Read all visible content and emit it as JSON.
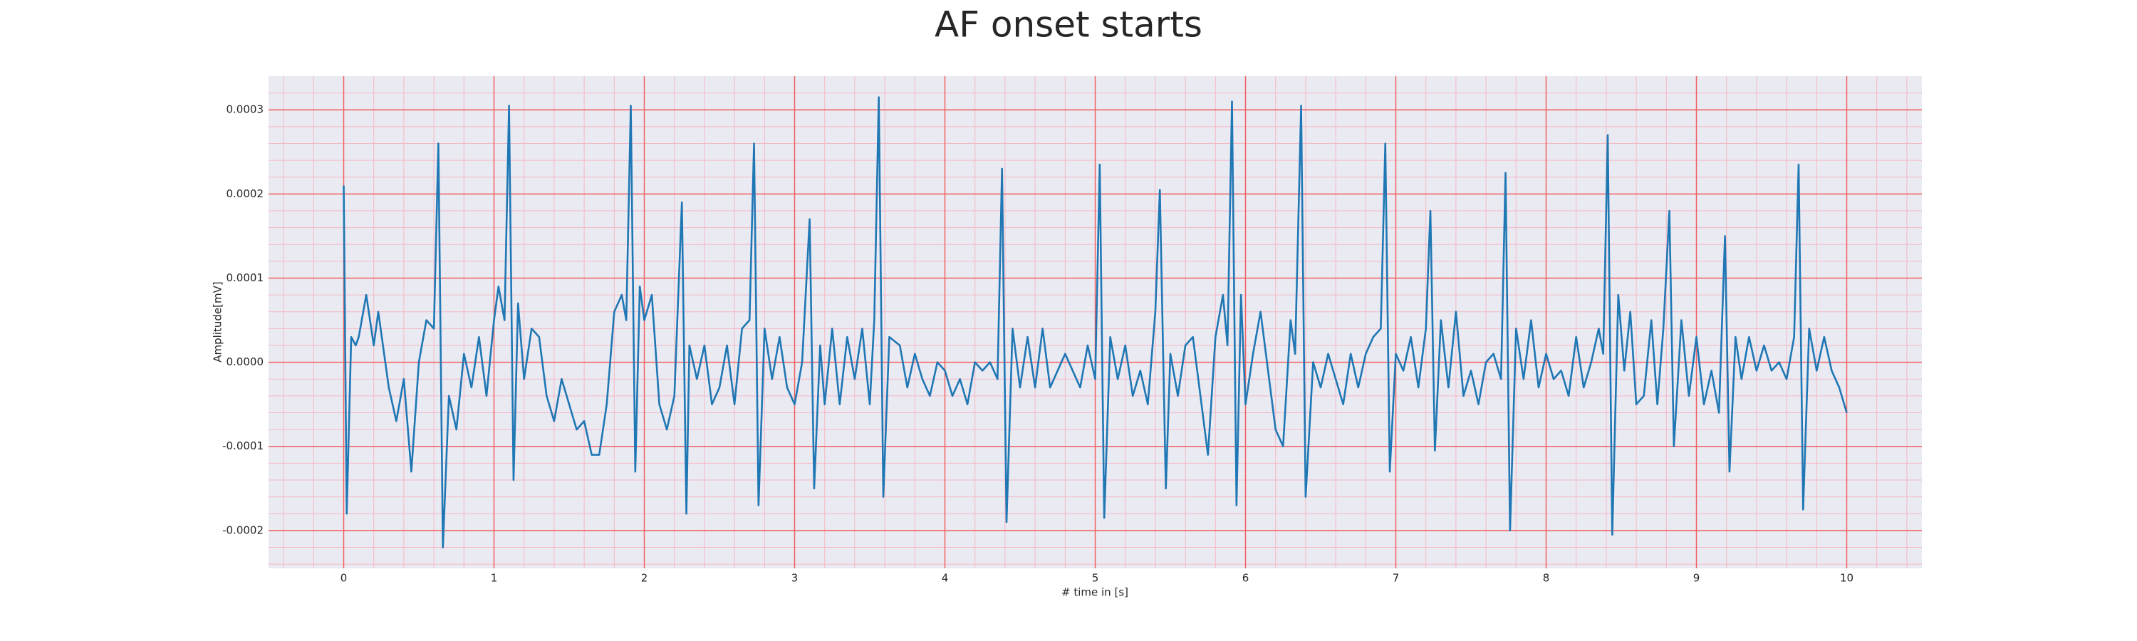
{
  "chart_data": {
    "type": "line",
    "title": "AF onset starts",
    "xlabel": "# time in [s]",
    "ylabel": "Amplitude[mV]",
    "xlim": [
      -0.5,
      10.5
    ],
    "ylim": [
      -0.000245,
      0.00034
    ],
    "xticks": [
      0,
      1,
      2,
      3,
      4,
      5,
      6,
      7,
      8,
      9,
      10
    ],
    "yticks": [
      -0.0002,
      -0.0001,
      {
        "value": 0,
        "label": "0.0000"
      },
      0.0001,
      0.0002,
      0.0003
    ],
    "xminorticks": [
      -0.4,
      -0.2,
      0.2,
      0.4,
      0.6,
      0.8,
      1.2,
      1.4,
      1.6,
      1.8,
      2.2,
      2.4,
      2.6,
      2.8,
      3.2,
      3.4,
      3.6,
      3.8,
      4.2,
      4.4,
      4.6,
      4.8,
      5.2,
      5.4,
      5.6,
      5.8,
      6.2,
      6.4,
      6.6,
      6.8,
      7.2,
      7.4,
      7.6,
      7.8,
      8.2,
      8.4,
      8.6,
      8.8,
      9.2,
      9.4,
      9.6,
      9.8,
      10.2,
      10.4
    ],
    "yminorticks": [
      -0.00024,
      -0.00022,
      -0.00018,
      -0.00016,
      -0.00014,
      -0.00012,
      -8e-05,
      -6e-05,
      -4e-05,
      -2e-05,
      2e-05,
      4e-05,
      6e-05,
      8e-05,
      0.00012,
      0.00014,
      0.00016,
      0.00018,
      0.00022,
      0.00024,
      0.00026,
      0.00028,
      0.00032
    ],
    "grid": true,
    "grid_color": "#f06060",
    "minor_grid_color": "#f5b8c4",
    "background": "#eaeaf2",
    "series": [
      {
        "color": "#1f77b4",
        "x": [
          0,
          0.02,
          0.05,
          0.08,
          0.1,
          0.15,
          0.2,
          0.23,
          0.3,
          0.35,
          0.4,
          0.45,
          0.5,
          0.55,
          0.6,
          0.63,
          0.66,
          0.7,
          0.75,
          0.8,
          0.85,
          0.9,
          0.95,
          1.0,
          1.03,
          1.07,
          1.1,
          1.13,
          1.16,
          1.2,
          1.25,
          1.3,
          1.35,
          1.4,
          1.45,
          1.5,
          1.55,
          1.6,
          1.65,
          1.7,
          1.75,
          1.8,
          1.85,
          1.88,
          1.91,
          1.94,
          1.97,
          2.0,
          2.05,
          2.1,
          2.15,
          2.2,
          2.25,
          2.28,
          2.3,
          2.35,
          2.4,
          2.45,
          2.5,
          2.55,
          2.6,
          2.65,
          2.7,
          2.73,
          2.76,
          2.8,
          2.85,
          2.9,
          2.95,
          3.0,
          3.05,
          3.1,
          3.13,
          3.17,
          3.2,
          3.25,
          3.3,
          3.35,
          3.4,
          3.45,
          3.5,
          3.53,
          3.56,
          3.59,
          3.63,
          3.7,
          3.75,
          3.8,
          3.85,
          3.9,
          3.95,
          4.0,
          4.05,
          4.1,
          4.15,
          4.2,
          4.25,
          4.3,
          4.35,
          4.38,
          4.41,
          4.45,
          4.5,
          4.55,
          4.6,
          4.65,
          4.7,
          4.75,
          4.8,
          4.85,
          4.9,
          4.95,
          5.0,
          5.03,
          5.06,
          5.1,
          5.15,
          5.2,
          5.25,
          5.3,
          5.35,
          5.4,
          5.43,
          5.47,
          5.5,
          5.55,
          5.6,
          5.65,
          5.7,
          5.75,
          5.8,
          5.85,
          5.88,
          5.91,
          5.94,
          5.97,
          6.0,
          6.05,
          6.1,
          6.15,
          6.2,
          6.25,
          6.3,
          6.33,
          6.37,
          6.4,
          6.45,
          6.5,
          6.55,
          6.6,
          6.65,
          6.7,
          6.75,
          6.8,
          6.85,
          6.9,
          6.93,
          6.96,
          7.0,
          7.05,
          7.1,
          7.15,
          7.2,
          7.23,
          7.26,
          7.3,
          7.35,
          7.4,
          7.45,
          7.5,
          7.55,
          7.6,
          7.65,
          7.7,
          7.73,
          7.76,
          7.8,
          7.85,
          7.9,
          7.95,
          8.0,
          8.05,
          8.1,
          8.15,
          8.2,
          8.25,
          8.3,
          8.35,
          8.38,
          8.41,
          8.44,
          8.48,
          8.52,
          8.56,
          8.6,
          8.65,
          8.7,
          8.74,
          8.78,
          8.82,
          8.85,
          8.9,
          8.95,
          9.0,
          9.05,
          9.1,
          9.15,
          9.19,
          9.22,
          9.26,
          9.3,
          9.35,
          9.4,
          9.45,
          9.5,
          9.55,
          9.6,
          9.65,
          9.68,
          9.71,
          9.75,
          9.8,
          9.85,
          9.9,
          9.95,
          10.0
        ],
        "values": [
          0.00021,
          -0.00018,
          3e-05,
          2e-05,
          3e-05,
          8e-05,
          2e-05,
          6e-05,
          -3e-05,
          -7e-05,
          -2e-05,
          -0.00013,
          0,
          5e-05,
          4e-05,
          0.00026,
          -0.00022,
          -4e-05,
          -8e-05,
          1e-05,
          -3e-05,
          3e-05,
          -4e-05,
          5e-05,
          9e-05,
          5e-05,
          0.000305,
          -0.00014,
          7e-05,
          -2e-05,
          4e-05,
          3e-05,
          -4e-05,
          -7e-05,
          -2e-05,
          -5e-05,
          -8e-05,
          -7e-05,
          -0.00011,
          -0.00011,
          -5e-05,
          6e-05,
          8e-05,
          5e-05,
          0.000305,
          -0.00013,
          9e-05,
          5e-05,
          8e-05,
          -5e-05,
          -8e-05,
          -4e-05,
          0.00019,
          -0.00018,
          2e-05,
          -2e-05,
          2e-05,
          -5e-05,
          -3e-05,
          2e-05,
          -5e-05,
          4e-05,
          5e-05,
          0.00026,
          -0.00017,
          4e-05,
          -2e-05,
          3e-05,
          -3e-05,
          -5e-05,
          0,
          0.00017,
          -0.00015,
          2e-05,
          -5e-05,
          4e-05,
          -5e-05,
          3e-05,
          -2e-05,
          4e-05,
          -5e-05,
          5e-05,
          0.000315,
          -0.00016,
          3e-05,
          2e-05,
          -3e-05,
          1e-05,
          -2e-05,
          -4e-05,
          0,
          -1e-05,
          -4e-05,
          -2e-05,
          -5e-05,
          0,
          -1e-05,
          0,
          -2e-05,
          0.00023,
          -0.00019,
          4e-05,
          -3e-05,
          3e-05,
          -3e-05,
          4e-05,
          -3e-05,
          -1e-05,
          1e-05,
          -1e-05,
          -3e-05,
          2e-05,
          -2e-05,
          0.000235,
          -0.000185,
          3e-05,
          -2e-05,
          2e-05,
          -4e-05,
          -1e-05,
          -5e-05,
          6e-05,
          0.000205,
          -0.00015,
          1e-05,
          -4e-05,
          2e-05,
          3e-05,
          -4e-05,
          -0.00011,
          3e-05,
          8e-05,
          2e-05,
          0.00031,
          -0.00017,
          8e-05,
          -5e-05,
          1e-05,
          6e-05,
          -1e-05,
          -8e-05,
          -0.0001,
          5e-05,
          1e-05,
          0.000305,
          -0.00016,
          0,
          -3e-05,
          1e-05,
          -2e-05,
          -5e-05,
          1e-05,
          -3e-05,
          1e-05,
          3e-05,
          4e-05,
          0.00026,
          -0.00013,
          1e-05,
          -1e-05,
          3e-05,
          -3e-05,
          4e-05,
          0.00018,
          -0.000105,
          5e-05,
          -3e-05,
          6e-05,
          -4e-05,
          -1e-05,
          -5e-05,
          0,
          1e-05,
          -2e-05,
          0.000225,
          -0.0002,
          4e-05,
          -2e-05,
          5e-05,
          -3e-05,
          1e-05,
          -2e-05,
          -1e-05,
          -4e-05,
          3e-05,
          -3e-05,
          0,
          4e-05,
          1e-05,
          0.00027,
          -0.000205,
          8e-05,
          -1e-05,
          6e-05,
          -5e-05,
          -4e-05,
          5e-05,
          -5e-05,
          4e-05,
          0.00018,
          -0.0001,
          5e-05,
          -4e-05,
          3e-05,
          -5e-05,
          -1e-05,
          -6e-05,
          0.00015,
          -0.00013,
          3e-05,
          -2e-05,
          3e-05,
          -1e-05,
          2e-05,
          -1e-05,
          0,
          -2e-05,
          3e-05,
          0.000235,
          -0.000175,
          4e-05,
          -1e-05,
          3e-05,
          -1e-05,
          -3e-05,
          -6e-05
        ]
      }
    ]
  }
}
